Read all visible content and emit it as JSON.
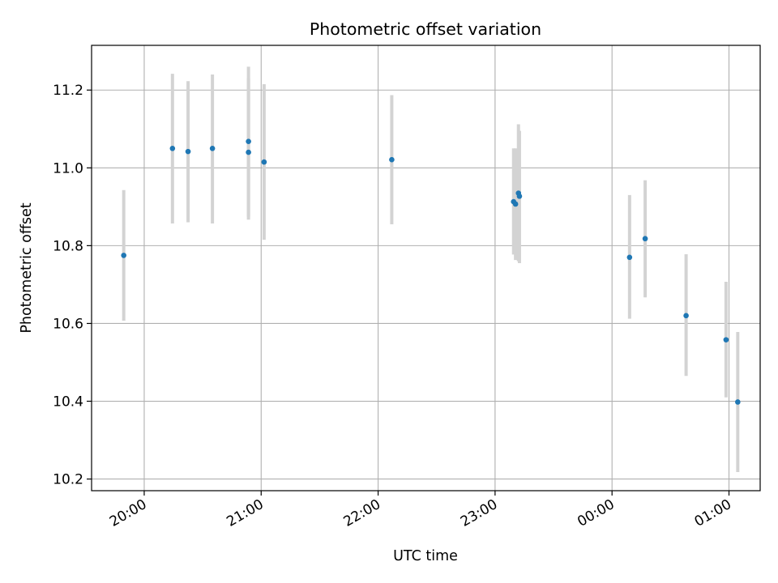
{
  "chart_data": {
    "type": "scatter",
    "title": "Photometric offset variation",
    "xlabel": "UTC time",
    "ylabel": "Photometric offset",
    "grid": true,
    "legend": "none",
    "x_unit": "UTC time of night, starting 19:30",
    "xlim": [
      "19:33",
      "01:16"
    ],
    "ylim": [
      10.17,
      11.315
    ],
    "x_ticks": [
      "20:00",
      "21:00",
      "22:00",
      "23:00",
      "00:00",
      "01:00"
    ],
    "y_ticks": [
      "10.2",
      "10.4",
      "10.6",
      "10.8",
      "11.0",
      "11.2"
    ],
    "colors": {
      "point": "#1f77b4",
      "errorbar": "#d3d3d3",
      "grid": "#b0b0b0"
    },
    "points": [
      {
        "x": "19:49:30",
        "y": 10.775,
        "err_low": 10.607,
        "err_high": 10.943
      },
      {
        "x": "20:14:30",
        "y": 11.05,
        "err_low": 10.857,
        "err_high": 11.242
      },
      {
        "x": "20:22:30",
        "y": 11.042,
        "err_low": 10.86,
        "err_high": 11.223
      },
      {
        "x": "20:35:00",
        "y": 11.05,
        "err_low": 10.857,
        "err_high": 11.24
      },
      {
        "x": "20:53:30",
        "y": 11.068,
        "err_low": 10.875,
        "err_high": 11.26
      },
      {
        "x": "20:53:30",
        "y": 11.04,
        "err_low": 10.867,
        "err_high": 11.23
      },
      {
        "x": "21:01:30",
        "y": 11.015,
        "err_low": 10.815,
        "err_high": 11.215
      },
      {
        "x": "22:07:00",
        "y": 11.021,
        "err_low": 10.855,
        "err_high": 11.187
      },
      {
        "x": "23:09:30",
        "y": 10.913,
        "err_low": 10.777,
        "err_high": 11.05
      },
      {
        "x": "23:10:30",
        "y": 10.907,
        "err_low": 10.763,
        "err_high": 11.05
      },
      {
        "x": "23:12:00",
        "y": 10.935,
        "err_low": 10.76,
        "err_high": 11.112
      },
      {
        "x": "23:12:30",
        "y": 10.927,
        "err_low": 10.755,
        "err_high": 11.095
      },
      {
        "x": "00:09:00",
        "y": 10.77,
        "err_low": 10.612,
        "err_high": 10.93
      },
      {
        "x": "00:17:00",
        "y": 10.818,
        "err_low": 10.667,
        "err_high": 10.968
      },
      {
        "x": "00:38:00",
        "y": 10.62,
        "err_low": 10.465,
        "err_high": 10.778
      },
      {
        "x": "00:58:30",
        "y": 10.558,
        "err_low": 10.41,
        "err_high": 10.707
      },
      {
        "x": "01:04:30",
        "y": 10.398,
        "err_low": 10.218,
        "err_high": 10.578
      }
    ]
  }
}
